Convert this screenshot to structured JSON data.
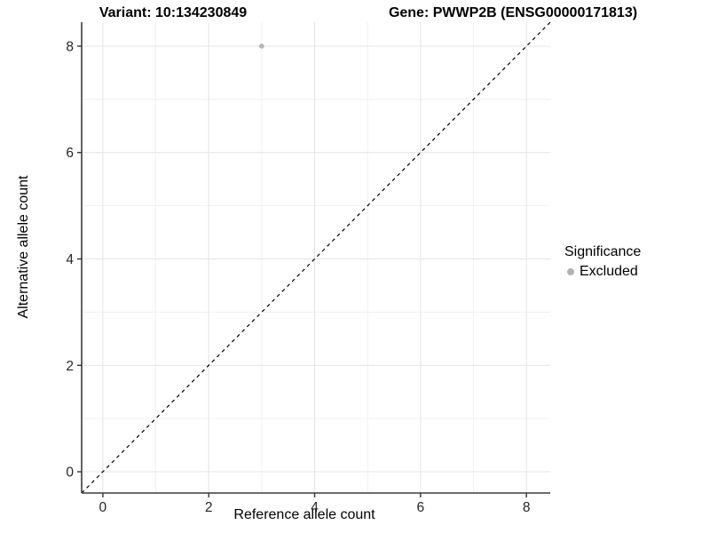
{
  "header": {
    "variant_title": "Variant: 10:134230849",
    "gene_title": "Gene: PWWP2B (ENSG00000171813)"
  },
  "chart_data": {
    "type": "scatter",
    "xlabel": "Reference allele count",
    "ylabel": "Alternative allele count",
    "xlim": [
      -0.4,
      8.45
    ],
    "ylim": [
      -0.4,
      8.45
    ],
    "x_ticks": [
      0,
      2,
      4,
      6,
      8
    ],
    "y_ticks": [
      0,
      2,
      4,
      6,
      8
    ],
    "x_minor_ticks": [
      1,
      3,
      5,
      7
    ],
    "y_minor_ticks": [
      1,
      3,
      5,
      7
    ],
    "grid": true,
    "legend_position": "right",
    "legend_title": "Significance",
    "series": [
      {
        "name": "Excluded",
        "color": "#b3b3b3",
        "points": [
          {
            "x": 3,
            "y": 8
          }
        ]
      }
    ],
    "reference_line": {
      "type": "identity",
      "label": "y = x",
      "style": "dashed",
      "color": "#000000"
    }
  },
  "style_colors": {
    "grid_major": "#e4e4e4",
    "grid_minor": "#f1f1f1",
    "axis_line": "#3c3c3c",
    "tick_mark": "#333333",
    "tick_label": "#262626"
  }
}
